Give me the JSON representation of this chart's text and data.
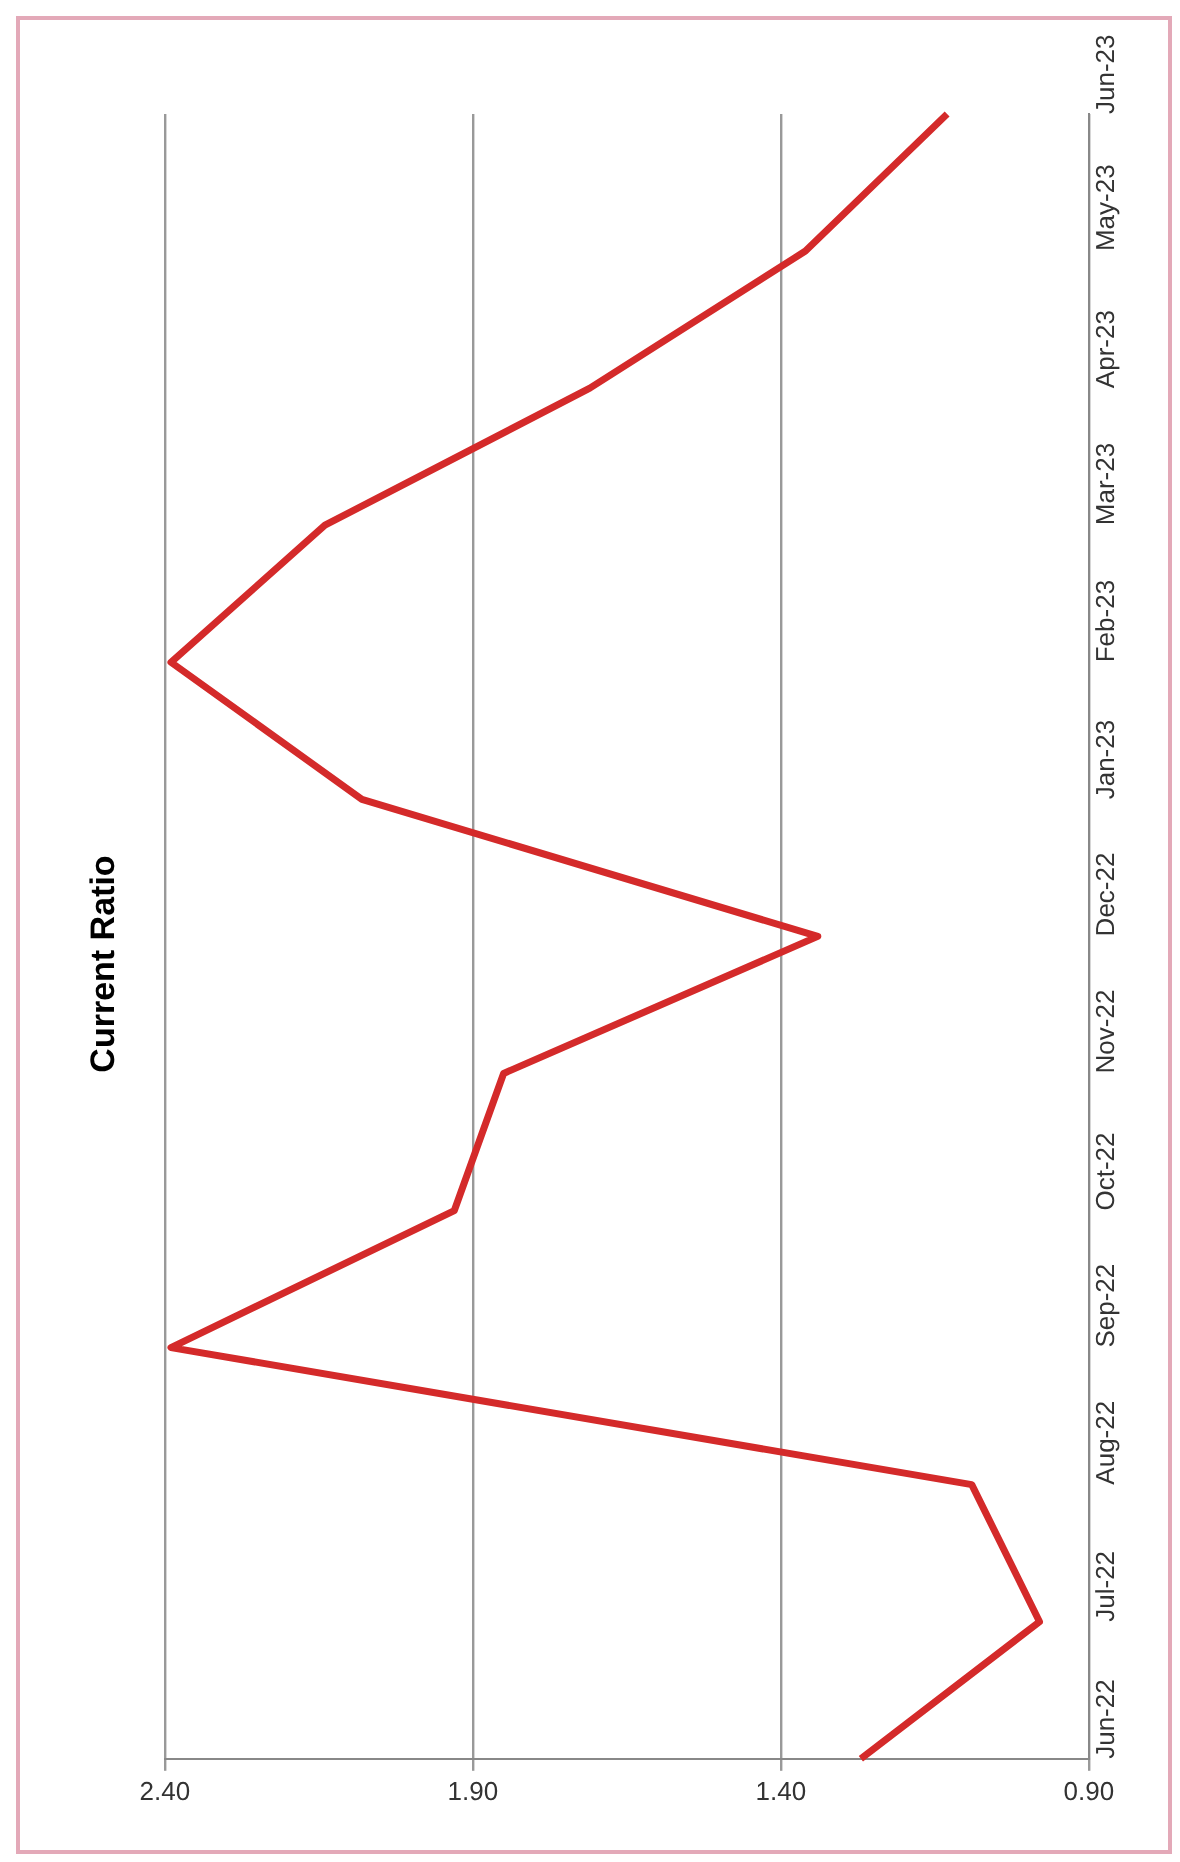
{
  "chart_data": {
    "type": "line",
    "title": "Current Ratio",
    "categories": [
      "Jun-23",
      "May-23",
      "Apr-23",
      "Mar-23",
      "Feb-23",
      "Jan-23",
      "Dec-22",
      "Nov-22",
      "Oct-22",
      "Sep-22",
      "Aug-22",
      "Jul-22",
      "Jun-22"
    ],
    "series": [
      {
        "color": "#d42a2a",
        "values": [
          1.13,
          1.36,
          1.71,
          2.14,
          2.39,
          2.08,
          1.34,
          1.85,
          1.93,
          2.39,
          1.09,
          0.98,
          1.27
        ]
      }
    ],
    "orientation": "horizontal",
    "xlim": [
      2.4,
      0.9
    ],
    "xticks": [
      {
        "value": 0.9,
        "label": "0.90"
      },
      {
        "value": 1.4,
        "label": "1.40"
      },
      {
        "value": 1.9,
        "label": "1.90"
      },
      {
        "value": 2.4,
        "label": "2.40"
      }
    ],
    "grid": "x",
    "legend": false,
    "marker": "none",
    "line_style": "solid"
  }
}
